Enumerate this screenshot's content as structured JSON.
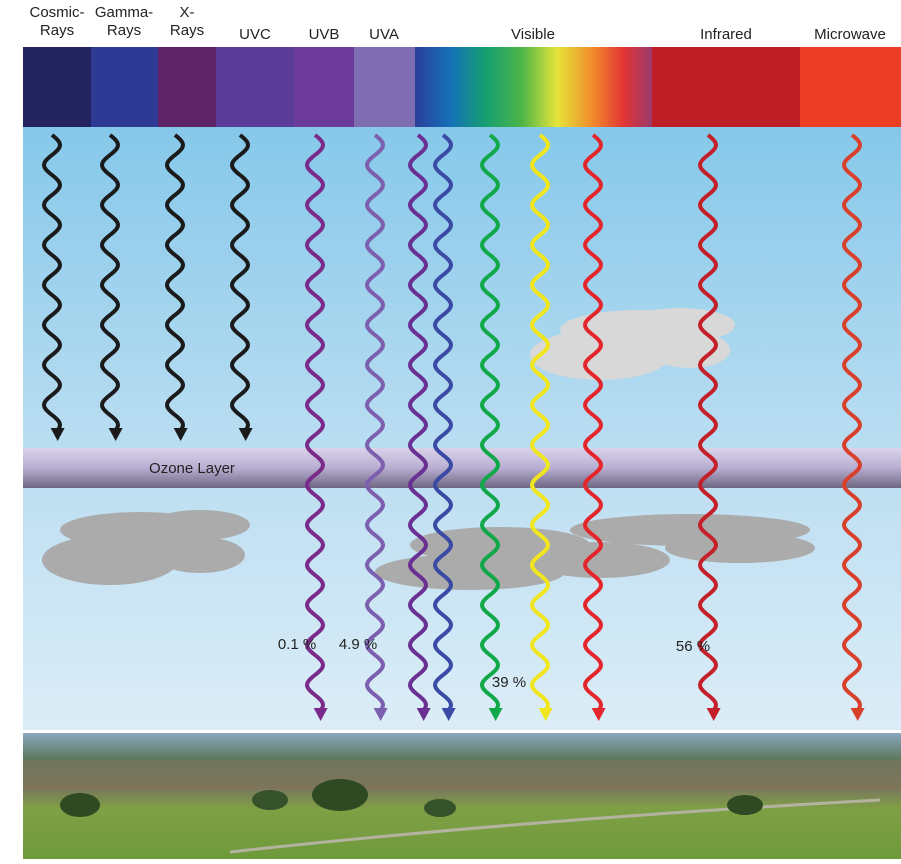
{
  "bands": [
    {
      "lines": [
        "Cosmic-",
        "Rays"
      ]
    },
    {
      "lines": [
        "Gamma-",
        "Rays"
      ]
    },
    {
      "lines": [
        "X-",
        "Rays"
      ]
    },
    {
      "lines": [
        "UVC"
      ]
    },
    {
      "lines": [
        "UVB"
      ]
    },
    {
      "lines": [
        "UVA"
      ]
    },
    {
      "lines": [
        "Visible"
      ]
    },
    {
      "lines": [
        "Infrared"
      ]
    },
    {
      "lines": [
        "Microwave"
      ]
    }
  ],
  "ozone_label": "Ozone Layer",
  "percentages": [
    "0.1 %",
    "4.9 %",
    "39 %",
    "56 %"
  ]
}
